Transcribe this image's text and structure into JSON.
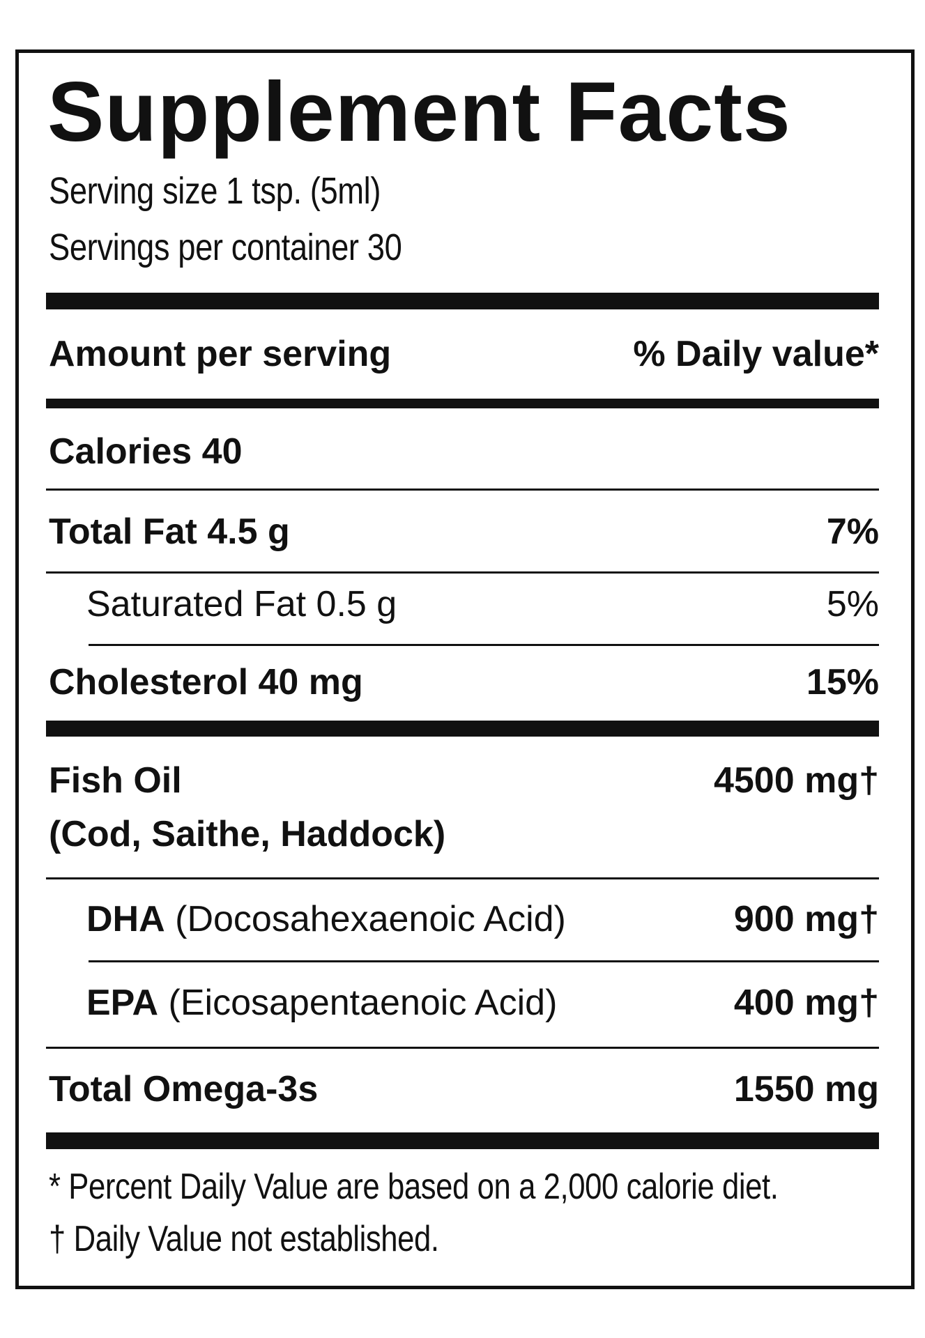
{
  "title": "Supplement Facts",
  "serving_size": "Serving size 1 tsp. (5ml)",
  "servings_per_container": "Servings per container 30",
  "header": {
    "amount": "Amount per serving",
    "daily_value": "% Daily value*"
  },
  "rows": [
    {
      "label": "Calories 40"
    },
    {
      "label": "Total Fat 4.5 g",
      "value": "7%"
    },
    {
      "label": "Saturated Fat 0.5 g",
      "value": "5%"
    },
    {
      "label": "Cholesterol 40 mg",
      "value": "15%"
    },
    {
      "label": "Fish Oil",
      "sublabel": "(Cod, Saithe, Haddock)",
      "value": "4500 mg†"
    },
    {
      "label": "DHA",
      "sublabel": "(Docosahexaenoic Acid)",
      "value": "900 mg†"
    },
    {
      "label": "EPA",
      "sublabel": "(Eicosapentaenoic Acid)",
      "value": "400 mg†"
    },
    {
      "label": "Total Omega-3s",
      "value": "1550 mg"
    }
  ],
  "footnotes": [
    "* Percent Daily Value are based on a 2,000 calorie diet.",
    "† Daily Value not established."
  ]
}
